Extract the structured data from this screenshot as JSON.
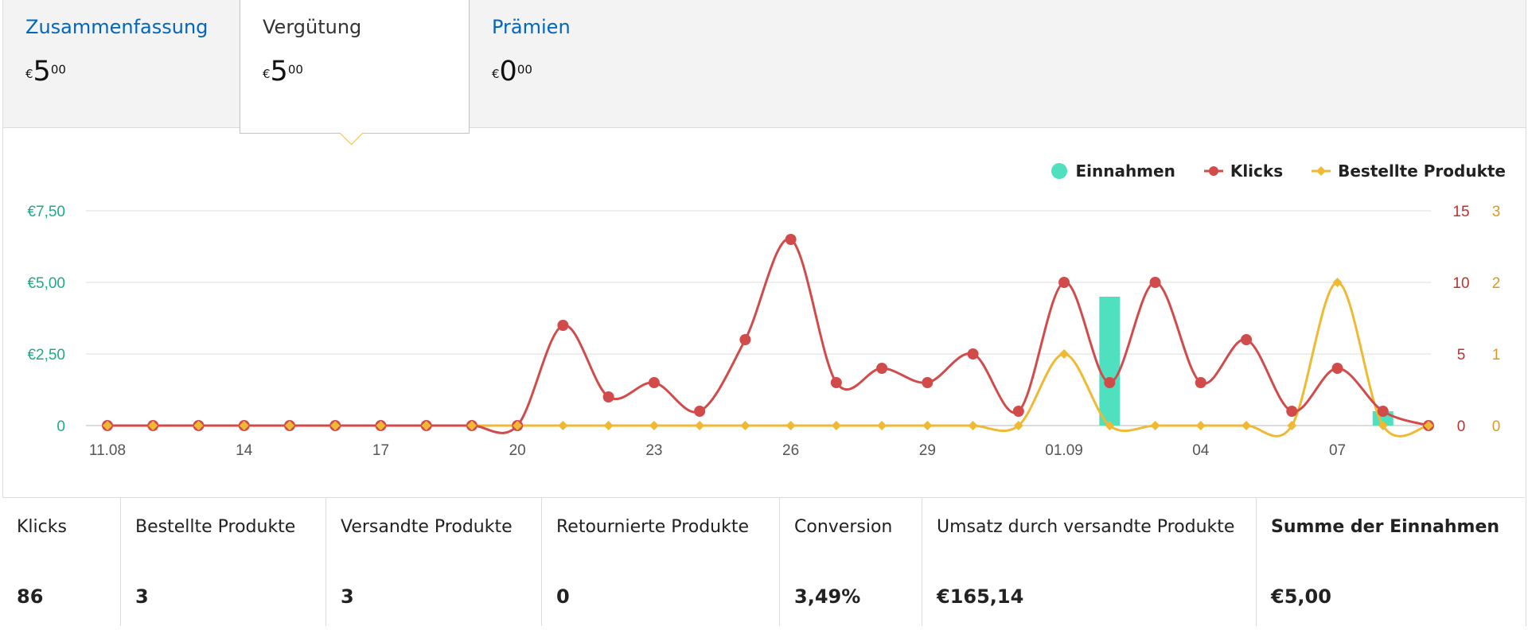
{
  "tabs": [
    {
      "label": "Zusammenfassung",
      "currency": "€",
      "major": "5",
      "minor": "00",
      "active": false
    },
    {
      "label": "Vergütung",
      "currency": "€",
      "major": "5",
      "minor": "00",
      "active": true
    },
    {
      "label": "Prämien",
      "currency": "€",
      "major": "0",
      "minor": "00",
      "active": false
    }
  ],
  "legend": {
    "revenue": "Einnahmen",
    "clicks": "Klicks",
    "ordered": "Bestellte Produkte"
  },
  "colors": {
    "revenue": "#4fe0c0",
    "clicks": "#d24b4b",
    "ordered": "#f0b933",
    "link": "#0066c0",
    "axis_left": "#1aab8b",
    "axis_right_clicks": "#c0302d",
    "axis_right_ordered": "#d99a1e"
  },
  "chart_data": {
    "type": "line",
    "x": [
      "11.08",
      "12.08",
      "13.08",
      "14",
      "15.08",
      "16.08",
      "17",
      "18.08",
      "19.08",
      "20",
      "21.08",
      "22.08",
      "23",
      "24.08",
      "25.08",
      "26",
      "27.08",
      "28.08",
      "29",
      "30.08",
      "31.08",
      "01.09",
      "02.09",
      "03.09",
      "04",
      "05.09",
      "06.09",
      "07",
      "08.09",
      "09.09"
    ],
    "x_tick_labels": [
      "11.08",
      "14",
      "17",
      "20",
      "23",
      "26",
      "29",
      "01.09",
      "04",
      "07"
    ],
    "x_tick_indices": [
      0,
      3,
      6,
      9,
      12,
      15,
      18,
      21,
      24,
      27
    ],
    "y_left": {
      "ticks": [
        "€7,50",
        "€5,00",
        "€2,50",
        "0"
      ],
      "range": [
        0,
        7.5
      ]
    },
    "y_right_clicks": {
      "ticks": [
        "15",
        "10",
        "5",
        "0"
      ],
      "range": [
        0,
        15
      ]
    },
    "y_right_ordered": {
      "ticks": [
        "3",
        "2",
        "1",
        "0"
      ],
      "range": [
        0,
        3
      ]
    },
    "series": [
      {
        "name": "Einnahmen",
        "type": "bar",
        "axis": "left",
        "values": [
          0,
          0,
          0,
          0,
          0,
          0,
          0,
          0,
          0,
          0,
          0,
          0,
          0,
          0,
          0,
          0,
          0,
          0,
          0,
          0,
          0,
          0,
          4.5,
          0,
          0,
          0,
          0,
          0,
          0.5,
          0
        ]
      },
      {
        "name": "Klicks",
        "type": "line",
        "axis": "right_clicks",
        "values": [
          0,
          0,
          0,
          0,
          0,
          0,
          0,
          0,
          0,
          0,
          7,
          2,
          3,
          1,
          6,
          13,
          3,
          4,
          3,
          5,
          1,
          10,
          3,
          10,
          3,
          6,
          1,
          4,
          1,
          0
        ]
      },
      {
        "name": "Bestellte Produkte",
        "type": "line",
        "axis": "right_ordered",
        "values": [
          0,
          0,
          0,
          0,
          0,
          0,
          0,
          0,
          0,
          0,
          0,
          0,
          0,
          0,
          0,
          0,
          0,
          0,
          0,
          0,
          0,
          1,
          0,
          0,
          0,
          0,
          0,
          2,
          0,
          0
        ]
      }
    ],
    "grid": true,
    "legend_position": "top-right"
  },
  "stats": [
    {
      "label": "Klicks",
      "value": "86"
    },
    {
      "label": "Bestellte Produkte",
      "value": "3"
    },
    {
      "label": "Versandte Produkte",
      "value": "3"
    },
    {
      "label": "Retournierte Produkte",
      "value": "0"
    },
    {
      "label": "Conversion",
      "value": "3,49%"
    },
    {
      "label": "Umsatz durch versandte Produkte",
      "value": "€165,14"
    },
    {
      "label": "Summe der Einnahmen",
      "value": "€5,00"
    }
  ]
}
